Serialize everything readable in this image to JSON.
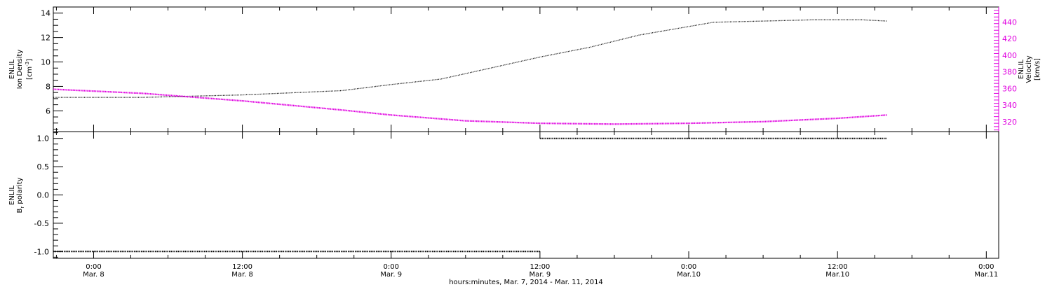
{
  "chart_data": [
    {
      "type": "line",
      "panel": "top",
      "x_axis": {
        "range": [
          "2014-03-07 20:45",
          "2014-03-11 01:00"
        ],
        "ticks": [
          {
            "at": "2014-03-08 00:00",
            "time": "0:00",
            "date": "Mar. 8"
          },
          {
            "at": "2014-03-08 12:00",
            "time": "12:00",
            "date": "Mar. 8"
          },
          {
            "at": "2014-03-09 00:00",
            "time": "0:00",
            "date": "Mar. 9"
          },
          {
            "at": "2014-03-09 12:00",
            "time": "12:00",
            "date": "Mar. 9"
          },
          {
            "at": "2014-03-10 00:00",
            "time": "0:00",
            "date": "Mar.10"
          },
          {
            "at": "2014-03-10 12:00",
            "time": "12:00",
            "date": "Mar.10"
          },
          {
            "at": "2014-03-11 00:00",
            "time": "0:00",
            "date": "Mar.11"
          }
        ]
      },
      "left_axis": {
        "label_lines": [
          "ENLIL",
          "Ion Density"
        ],
        "unit": "[cm",
        "unit_exp": "-3",
        "unit_close": "]",
        "ylim": [
          4.3,
          14.5
        ],
        "ticks": [
          "6",
          "8",
          "10",
          "12",
          "14"
        ],
        "color": "#000000"
      },
      "right_axis": {
        "label_lines": [
          "ENLIL",
          "Velocity"
        ],
        "unit": "[km/s]",
        "ylim": [
          308,
          458
        ],
        "ticks": [
          "320",
          "340",
          "360",
          "380",
          "400",
          "420",
          "440"
        ],
        "color": "#e000e0"
      },
      "series": [
        {
          "color": "#000000",
          "axis": "left",
          "points": [
            [
              "2014-03-07 20:45",
              7.1
            ],
            [
              "2014-03-08 04:00",
              7.1
            ],
            [
              "2014-03-08 12:00",
              7.3
            ],
            [
              "2014-03-08 20:00",
              7.65
            ],
            [
              "2014-03-09 00:00",
              8.15
            ],
            [
              "2014-03-09 04:00",
              8.6
            ],
            [
              "2014-03-09 08:00",
              9.5
            ],
            [
              "2014-03-09 12:00",
              10.4
            ],
            [
              "2014-03-09 16:00",
              11.2
            ],
            [
              "2014-03-09 20:00",
              12.2
            ],
            [
              "2014-03-10 00:00",
              12.9
            ],
            [
              "2014-03-10 02:00",
              13.25
            ],
            [
              "2014-03-10 06:00",
              13.35
            ],
            [
              "2014-03-10 10:00",
              13.45
            ],
            [
              "2014-03-10 14:00",
              13.45
            ],
            [
              "2014-03-10 16:00",
              13.35
            ]
          ]
        },
        {
          "color": "#e000e0",
          "axis": "right",
          "points": [
            [
              "2014-03-07 20:45",
              359
            ],
            [
              "2014-03-08 04:00",
              354
            ],
            [
              "2014-03-08 12:00",
              345
            ],
            [
              "2014-03-08 20:00",
              334
            ],
            [
              "2014-03-09 00:00",
              328
            ],
            [
              "2014-03-09 06:00",
              321
            ],
            [
              "2014-03-09 12:00",
              318
            ],
            [
              "2014-03-09 18:00",
              317
            ],
            [
              "2014-03-10 00:00",
              318
            ],
            [
              "2014-03-10 06:00",
              320
            ],
            [
              "2014-03-10 12:00",
              324
            ],
            [
              "2014-03-10 16:00",
              328
            ]
          ]
        }
      ]
    },
    {
      "type": "line",
      "panel": "bottom",
      "left_axis": {
        "label_lines": [
          "ENLIL",
          "B polarity"
        ],
        "label_b": "B",
        "label_sub": "r",
        "label_rest": " polarity",
        "ylim": [
          -1.12,
          1.12
        ],
        "ticks": [
          "-1.0",
          "-0.5",
          "0.0",
          "0.5",
          "1.0"
        ]
      },
      "series": [
        {
          "color": "#000000",
          "points": [
            [
              "2014-03-07 20:45",
              -1.0
            ],
            [
              "2014-03-09 12:00",
              -1.0
            ],
            [
              "2014-03-09 12:00",
              1.0
            ],
            [
              "2014-03-10 16:00",
              1.0
            ]
          ]
        }
      ]
    }
  ],
  "x_axis_title": "hours:minutes, Mar.  7, 2014 - Mar. 11, 2014"
}
